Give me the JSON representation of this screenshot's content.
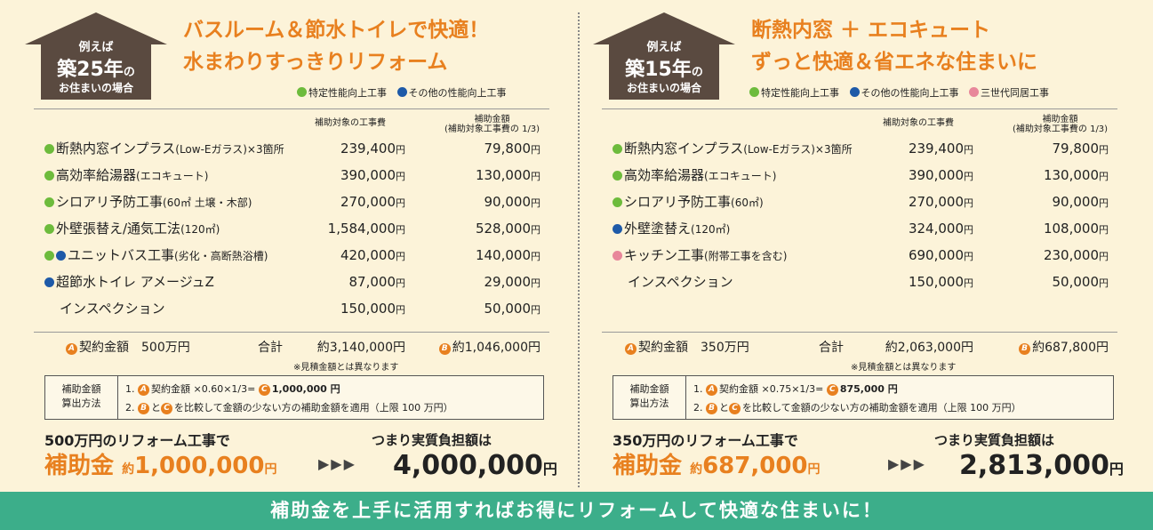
{
  "colors": {
    "accent": "#e8801f",
    "house": "#5a4a40",
    "green_dot": "#6dbb3c",
    "blue_dot": "#1e5aa8",
    "pink_dot": "#e8879a",
    "footer": "#3cae8a"
  },
  "left": {
    "badge": {
      "line1": "例えば",
      "years_prefix": "築",
      "years": "25",
      "years_suffix": "年",
      "no": "の",
      "line3": "お住まいの場合"
    },
    "title_line1": "バスルーム＆節水トイレで快適！",
    "title_line2": "水まわりすっきりリフォーム",
    "legend": [
      {
        "dot": "green",
        "label": "特定性能向上工事"
      },
      {
        "dot": "blue",
        "label": "その他の性能向上工事"
      }
    ],
    "header_cost": "補助対象の工事費",
    "header_sub1": "補助金額",
    "header_sub2": "(補助対象工事費の 1/3)",
    "rows": [
      {
        "dots": "g",
        "name": "断熱内窓インプラス",
        "note": "(Low-Eガラス)×3箇所",
        "cost": "239,400",
        "sub": "79,800"
      },
      {
        "dots": "g",
        "name": "高効率給湯器",
        "note": "(エコキュート)",
        "cost": "390,000",
        "sub": "130,000"
      },
      {
        "dots": "g",
        "name": "シロアリ予防工事",
        "note": "(60㎡ 土壌・木部)",
        "cost": "270,000",
        "sub": "90,000"
      },
      {
        "dots": "g",
        "name": "外壁張替え/通気工法",
        "note": "(120㎡)",
        "cost": "1,584,000",
        "sub": "528,000"
      },
      {
        "dots": "gb",
        "name": "ユニットバス工事",
        "note": "(劣化・高断熱浴槽)",
        "cost": "420,000",
        "sub": "140,000"
      },
      {
        "dots": "b",
        "name": "超節水トイレ アメージュZ",
        "note": "",
        "cost": "87,000",
        "sub": "29,000"
      },
      {
        "dots": "",
        "name": "インスペクション",
        "note": "",
        "cost": "150,000",
        "sub": "50,000"
      }
    ],
    "yen": "円",
    "contract_label": "契約金額",
    "contract_value": "500万円",
    "total_label": "合計",
    "total_cost": "約3,140,000円",
    "total_sub": "約1,046,000円",
    "note": "※見積金額とは異なります",
    "calc_label1": "補助金額",
    "calc_label2": "算出方法",
    "calc_line1_a": "1.",
    "calc_line1_b": "契約金額 ×0.60×1/3=",
    "calc_line1_c": "1,000,000 円",
    "calc_line2_a": "2.",
    "calc_line2_b": "と",
    "calc_line2_c": "を比較して金額の少ない方の補助金額を適用（上限 100 万円）",
    "bottom_text": "500万円のリフォーム工事で",
    "bottom_right": "つまり実質負担額は",
    "subsidy_label": "補助金",
    "subsidy_approx": "約",
    "subsidy_value": "1,000,000",
    "arrows": "▶▶▶",
    "final_value": "4,000,000"
  },
  "right": {
    "badge": {
      "line1": "例えば",
      "years_prefix": "築",
      "years": "15",
      "years_suffix": "年",
      "no": "の",
      "line3": "お住まいの場合"
    },
    "title_line1": "断熱内窓 ＋ エコキュート",
    "title_line2": "ずっと快適＆省エネな住まいに",
    "legend": [
      {
        "dot": "green",
        "label": "特定性能向上工事"
      },
      {
        "dot": "blue",
        "label": "その他の性能向上工事"
      },
      {
        "dot": "pink",
        "label": "三世代同居工事"
      }
    ],
    "header_cost": "補助対象の工事費",
    "header_sub1": "補助金額",
    "header_sub2": "(補助対象工事費の 1/3)",
    "rows": [
      {
        "dots": "g",
        "name": "断熱内窓インプラス",
        "note": "(Low-Eガラス)×3箇所",
        "cost": "239,400",
        "sub": "79,800"
      },
      {
        "dots": "g",
        "name": "高効率給湯器",
        "note": "(エコキュート)",
        "cost": "390,000",
        "sub": "130,000"
      },
      {
        "dots": "g",
        "name": "シロアリ予防工事",
        "note": "(60㎡)",
        "cost": "270,000",
        "sub": "90,000"
      },
      {
        "dots": "b",
        "name": "外壁塗替え",
        "note": "(120㎡)",
        "cost": "324,000",
        "sub": "108,000"
      },
      {
        "dots": "p",
        "name": "キッチン工事",
        "note": "(附帯工事を含む)",
        "cost": "690,000",
        "sub": "230,000"
      },
      {
        "dots": "",
        "name": "インスペクション",
        "note": "",
        "cost": "150,000",
        "sub": "50,000"
      }
    ],
    "yen": "円",
    "contract_label": "契約金額",
    "contract_value": "350万円",
    "total_label": "合計",
    "total_cost": "約2,063,000円",
    "total_sub": "約687,800円",
    "note": "※見積金額とは異なります",
    "calc_label1": "補助金額",
    "calc_label2": "算出方法",
    "calc_line1_a": "1.",
    "calc_line1_b": "契約金額 ×0.75×1/3=",
    "calc_line1_c": "875,000 円",
    "calc_line2_a": "2.",
    "calc_line2_b": "と",
    "calc_line2_c": "を比較して金額の少ない方の補助金額を適用（上限 100 万円）",
    "bottom_text": "350万円のリフォーム工事で",
    "bottom_right": "つまり実質負担額は",
    "subsidy_label": "補助金",
    "subsidy_approx": "約",
    "subsidy_value": "687,000",
    "arrows": "▶▶▶",
    "final_value": "2,813,000"
  },
  "circle_a": "A",
  "circle_b": "B",
  "circle_c": "C",
  "footer": "補助金を上手に活用すればお得にリフォームして快適な住まいに！"
}
